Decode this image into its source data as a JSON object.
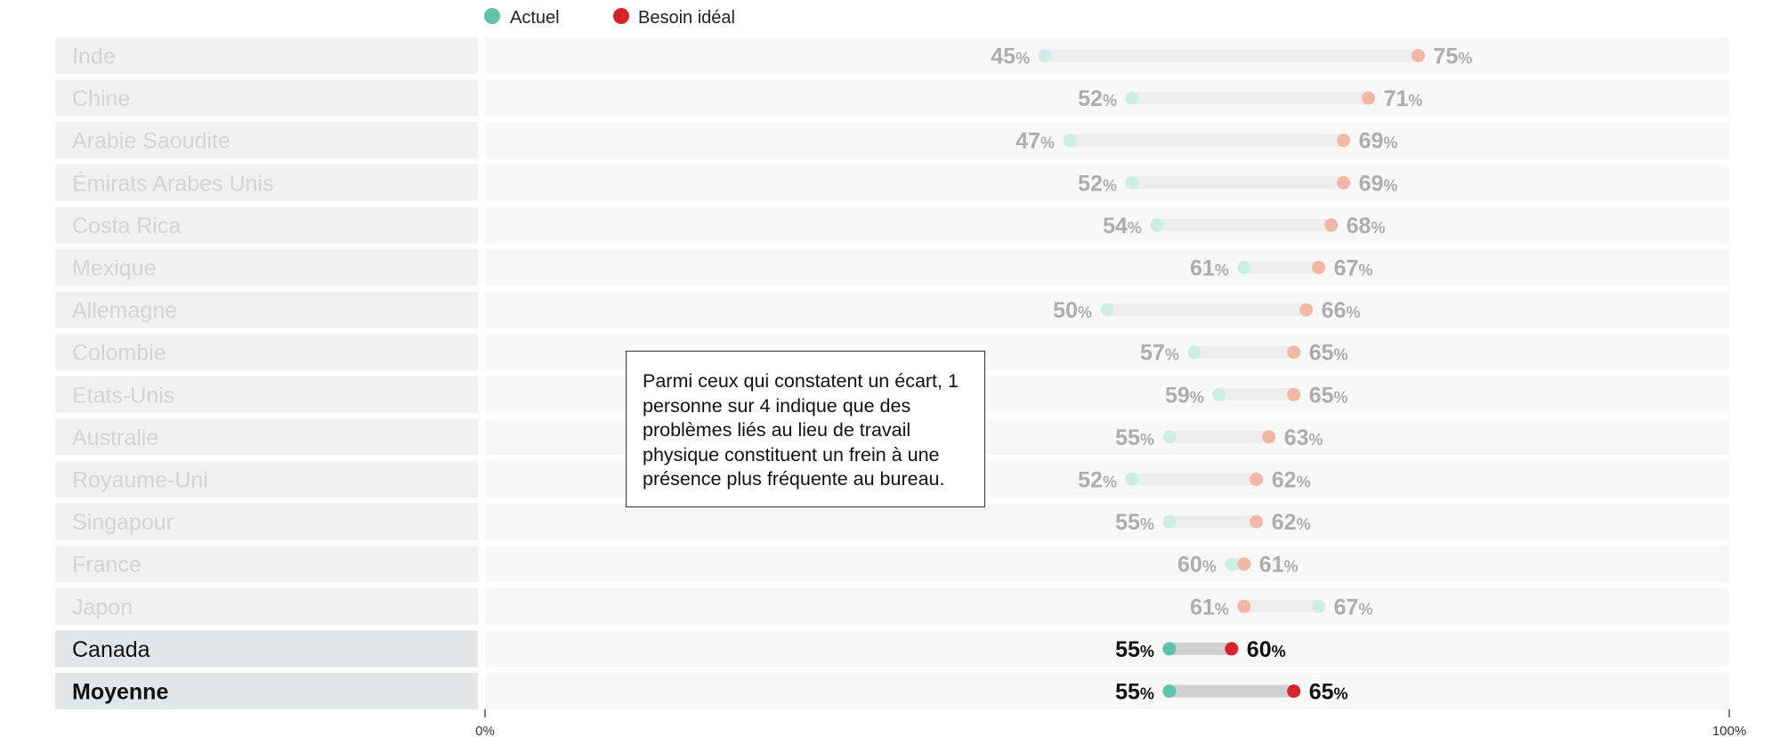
{
  "chart_data": {
    "type": "dumbbell",
    "title": "",
    "xlabel": "",
    "ylabel": "",
    "xlim": [
      0,
      100
    ],
    "x_ticks": [
      "0%",
      "100%"
    ],
    "legend_position": "top-left",
    "series": [
      {
        "name": "Actuel",
        "color": "#5dc4a8"
      },
      {
        "name": "Besoin idéal",
        "color": "#d9222a"
      }
    ],
    "rows": [
      {
        "label": "Inde",
        "actuel": 45,
        "besoin": 75,
        "highlight": false
      },
      {
        "label": "Chine",
        "actuel": 52,
        "besoin": 71,
        "highlight": false
      },
      {
        "label": "Arabie Saoudite",
        "actuel": 47,
        "besoin": 69,
        "highlight": false
      },
      {
        "label": "Émirats Arabes Unis",
        "actuel": 52,
        "besoin": 69,
        "highlight": false
      },
      {
        "label": "Costa Rica",
        "actuel": 54,
        "besoin": 68,
        "highlight": false
      },
      {
        "label": "Mexique",
        "actuel": 61,
        "besoin": 67,
        "highlight": false
      },
      {
        "label": "Allemagne",
        "actuel": 50,
        "besoin": 66,
        "highlight": false
      },
      {
        "label": "Colombie",
        "actuel": 57,
        "besoin": 65,
        "highlight": false
      },
      {
        "label": "Etats-Unis",
        "actuel": 59,
        "besoin": 65,
        "highlight": false
      },
      {
        "label": "Australie",
        "actuel": 55,
        "besoin": 63,
        "highlight": false
      },
      {
        "label": "Royaume-Uni",
        "actuel": 52,
        "besoin": 62,
        "highlight": false
      },
      {
        "label": "Singapour",
        "actuel": 55,
        "besoin": 62,
        "highlight": false
      },
      {
        "label": "France",
        "actuel": 60,
        "besoin": 61,
        "highlight": false
      },
      {
        "label": "Japon",
        "actuel": 67,
        "besoin": 61,
        "highlight": false
      },
      {
        "label": "Canada",
        "actuel": 55,
        "besoin": 60,
        "highlight": true
      },
      {
        "label": "Moyenne",
        "actuel": 55,
        "besoin": 65,
        "highlight": true,
        "bold": true
      }
    ],
    "annotation": "Parmi ceux qui constatent un écart, 1 personne sur 4 indique que des problèmes liés au lieu de travail physique constituent un frein à une présence plus fréquente au bureau."
  },
  "colors": {
    "actuel": "#5dc4a8",
    "actuel_faded": "#cdeee4",
    "besoin": "#d9222a",
    "besoin_faded": "#f2b8a5",
    "row_bg": "#f8f8f8",
    "label_bg": "#f1f1f1",
    "label_bg_highlight": "#e4e5e6",
    "track_faded": "#ededed",
    "track_highlight": "#d0d0d0",
    "text_faded": "#d4d4d4",
    "value_faded": "#adadad",
    "text_strong": "#111111"
  }
}
